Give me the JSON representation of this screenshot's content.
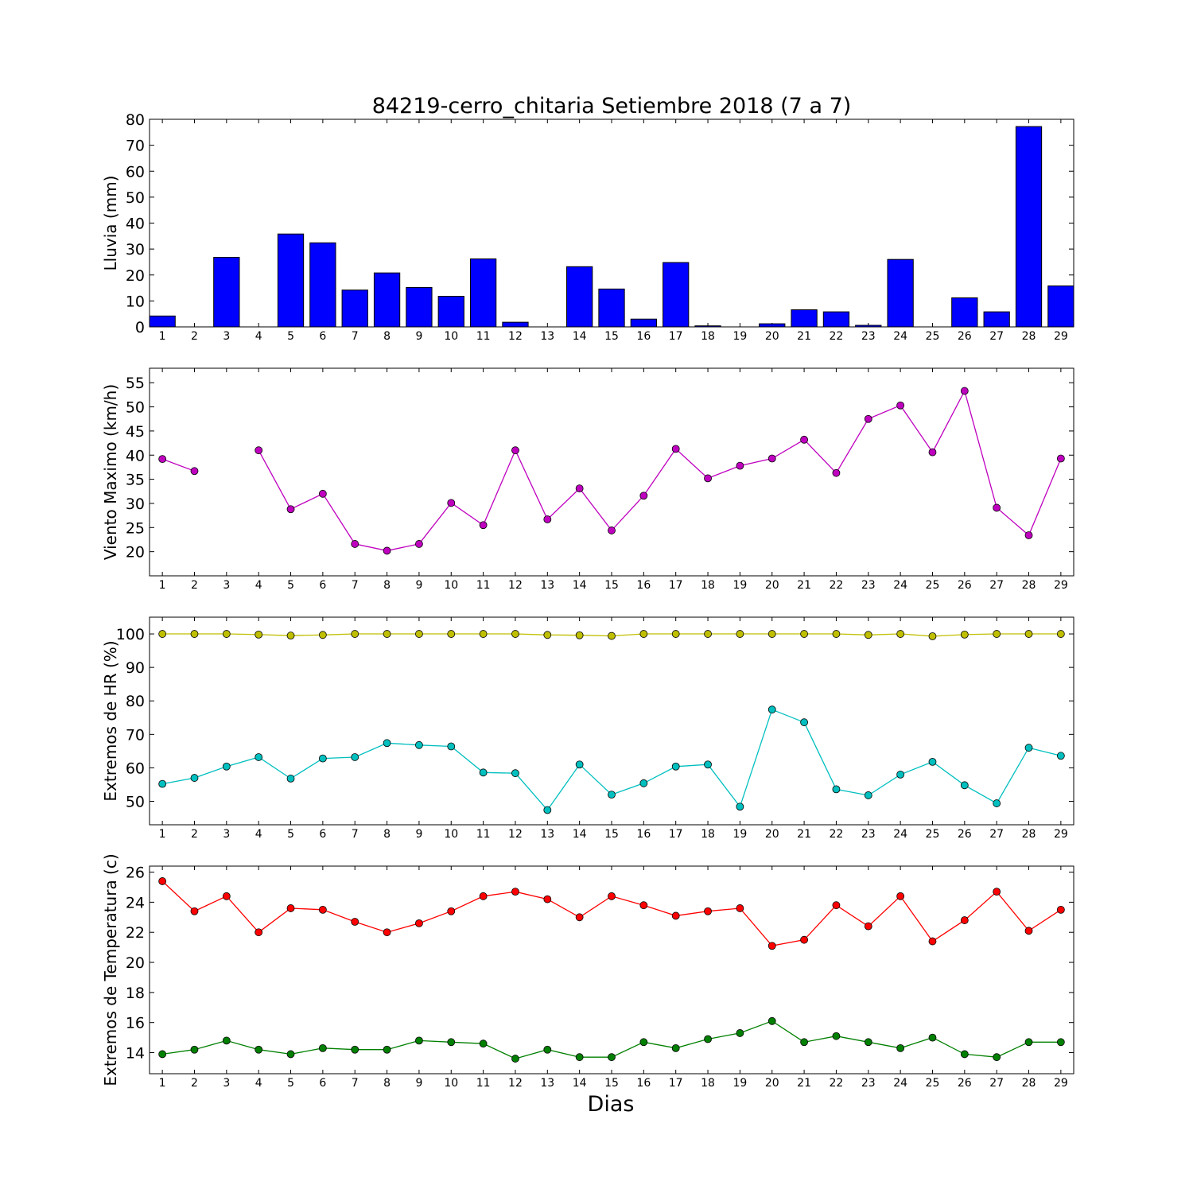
{
  "figure": {
    "title": "84219-cerro_chitaria Setiembre 2018  (7 a 7)",
    "xlabel": "Dias"
  },
  "colors": {
    "rain": "#0000ff",
    "wind": "#bf00bf",
    "hr_max": "#bfbf00",
    "hr_min": "#00bfbf",
    "temp_max": "#ff0000",
    "temp_min": "#008000"
  },
  "chart_data": [
    {
      "type": "bar",
      "ylabel": "Lluvia (mm)",
      "categories": [
        1,
        2,
        3,
        4,
        5,
        6,
        7,
        8,
        9,
        10,
        11,
        12,
        13,
        14,
        15,
        16,
        17,
        18,
        19,
        20,
        21,
        22,
        23,
        24,
        25,
        26,
        27,
        28,
        29
      ],
      "values": [
        4.2,
        0,
        26.8,
        0,
        35.8,
        32.4,
        14.2,
        20.8,
        15.2,
        11.8,
        26.2,
        1.8,
        0,
        23.2,
        14.6,
        3.0,
        24.8,
        0.4,
        0,
        1.2,
        6.6,
        5.8,
        0.6,
        26.0,
        0,
        11.2,
        5.8,
        77.2,
        15.8
      ],
      "ylim": [
        0,
        80
      ],
      "yticks": [
        0,
        10,
        20,
        30,
        40,
        50,
        60,
        70,
        80
      ],
      "grid": false
    },
    {
      "type": "line",
      "ylabel": "Viento Maximo (km/h)",
      "x": [
        1,
        2,
        3,
        4,
        5,
        6,
        7,
        8,
        9,
        10,
        11,
        12,
        13,
        14,
        15,
        16,
        17,
        18,
        19,
        20,
        21,
        22,
        23,
        24,
        25,
        26,
        27,
        28,
        29
      ],
      "series": [
        {
          "values": [
            39.2,
            36.7,
            null,
            41.0,
            28.8,
            32.0,
            21.6,
            20.2,
            21.6,
            30.1,
            25.5,
            41.0,
            26.7,
            33.1,
            24.4,
            31.6,
            41.3,
            35.2,
            37.8,
            39.3,
            43.2,
            36.3,
            47.5,
            50.3,
            40.6,
            53.3,
            29.1,
            23.4,
            39.3
          ]
        }
      ],
      "ylim": [
        15,
        58
      ],
      "yticks": [
        20,
        25,
        30,
        35,
        40,
        45,
        50,
        55
      ],
      "grid": false
    },
    {
      "type": "line",
      "ylabel": "Extremos de HR (%)",
      "x": [
        1,
        2,
        3,
        4,
        5,
        6,
        7,
        8,
        9,
        10,
        11,
        12,
        13,
        14,
        15,
        16,
        17,
        18,
        19,
        20,
        21,
        22,
        23,
        24,
        25,
        26,
        27,
        28,
        29
      ],
      "series": [
        {
          "values": [
            100,
            100,
            100,
            99.8,
            99.5,
            99.7,
            100,
            100,
            100,
            100,
            100,
            100,
            99.7,
            99.6,
            99.4,
            100,
            100,
            100,
            100,
            100,
            100,
            100,
            99.7,
            100,
            99.3,
            99.8,
            100,
            100,
            100
          ]
        },
        {
          "values": [
            55.2,
            57.0,
            60.4,
            63.2,
            56.8,
            62.8,
            63.2,
            67.4,
            66.8,
            66.4,
            58.6,
            58.4,
            47.4,
            61.0,
            52.0,
            55.4,
            60.4,
            61.0,
            48.4,
            77.4,
            73.6,
            53.6,
            51.8,
            58.0,
            61.8,
            54.8,
            49.4,
            66.0,
            63.6
          ]
        }
      ],
      "ylim": [
        43,
        105
      ],
      "yticks": [
        50,
        60,
        70,
        80,
        90,
        100
      ],
      "grid": false
    },
    {
      "type": "line",
      "ylabel": "Extremos de Temperatura (c)",
      "x": [
        1,
        2,
        3,
        4,
        5,
        6,
        7,
        8,
        9,
        10,
        11,
        12,
        13,
        14,
        15,
        16,
        17,
        18,
        19,
        20,
        21,
        22,
        23,
        24,
        25,
        26,
        27,
        28,
        29
      ],
      "series": [
        {
          "values": [
            25.4,
            23.4,
            24.4,
            22.0,
            23.6,
            23.5,
            22.7,
            22.0,
            22.6,
            23.4,
            24.4,
            24.7,
            24.2,
            23.0,
            24.4,
            23.8,
            23.1,
            23.4,
            23.6,
            21.1,
            21.5,
            23.8,
            22.4,
            24.4,
            21.4,
            22.8,
            24.7,
            22.1,
            23.5
          ]
        },
        {
          "values": [
            13.9,
            14.2,
            14.8,
            14.2,
            13.9,
            14.3,
            14.2,
            14.2,
            14.8,
            14.7,
            14.6,
            13.6,
            14.2,
            13.7,
            13.7,
            14.7,
            14.3,
            14.9,
            15.3,
            16.1,
            14.7,
            15.1,
            14.7,
            14.3,
            15.0,
            13.9,
            13.7,
            14.7,
            14.7
          ]
        }
      ],
      "ylim": [
        12.6,
        26.4
      ],
      "yticks": [
        14,
        16,
        18,
        20,
        22,
        24,
        26
      ],
      "grid": false
    }
  ]
}
